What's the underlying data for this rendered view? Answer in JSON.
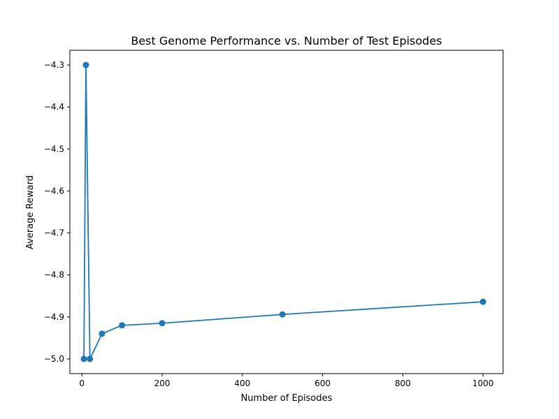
{
  "chart_data": {
    "type": "line",
    "title": "Best Genome Performance vs. Number of Test Episodes",
    "xlabel": "Number of Episodes",
    "ylabel": "Average Reward",
    "xlim": [
      -30,
      1050
    ],
    "ylim": [
      -5.035,
      -4.265
    ],
    "xticks": [
      0,
      200,
      400,
      600,
      800,
      1000
    ],
    "xtick_labels": [
      "0",
      "200",
      "400",
      "600",
      "800",
      "1000"
    ],
    "yticks": [
      -5.0,
      -4.9,
      -4.8,
      -4.7,
      -4.6,
      -4.5,
      -4.4,
      -4.3
    ],
    "ytick_labels": [
      "−5.0",
      "−4.9",
      "−4.8",
      "−4.7",
      "−4.6",
      "−4.5",
      "−4.4",
      "−4.3"
    ],
    "grid": false,
    "series": [
      {
        "color": "#1f77b4",
        "marker": "circle",
        "x": [
          5,
          10,
          20,
          50,
          100,
          200,
          500,
          1000
        ],
        "y": [
          -5.0,
          -4.3,
          -5.0,
          -4.94,
          -4.92,
          -4.915,
          -4.894,
          -4.864
        ]
      }
    ]
  }
}
